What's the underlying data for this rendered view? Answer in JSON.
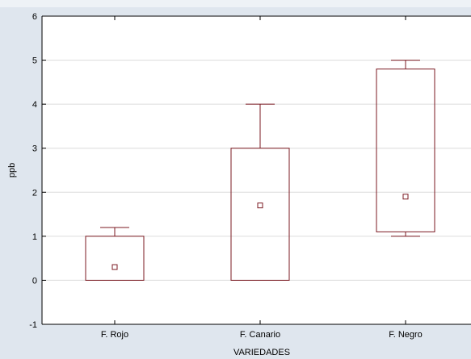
{
  "chart_data": {
    "type": "boxplot",
    "title": "",
    "xlabel": "VARIEDADES",
    "ylabel": "ppb",
    "ylim": [
      -1,
      6
    ],
    "yticks": [
      "-1",
      "0",
      "1",
      "2",
      "3",
      "4",
      "5",
      "6"
    ],
    "categories": [
      "F. Rojo",
      "F. Canario",
      "F. Negro"
    ],
    "boxes": [
      {
        "median": 0.3,
        "box_low": 0.0,
        "box_high": 1.0,
        "whisker_low": 0.0,
        "whisker_high": 1.2
      },
      {
        "median": 1.7,
        "box_low": 0.0,
        "box_high": 3.0,
        "whisker_low": 0.0,
        "whisker_high": 4.0
      },
      {
        "median": 1.9,
        "box_low": 1.1,
        "box_high": 4.8,
        "whisker_low": 1.0,
        "whisker_high": 5.0
      }
    ],
    "grid": true,
    "colors": {
      "box": "#7b1a22",
      "grid": "#dcdcdc",
      "plot_bg": "#ffffff",
      "page_bg": "#dfe6ee"
    }
  }
}
